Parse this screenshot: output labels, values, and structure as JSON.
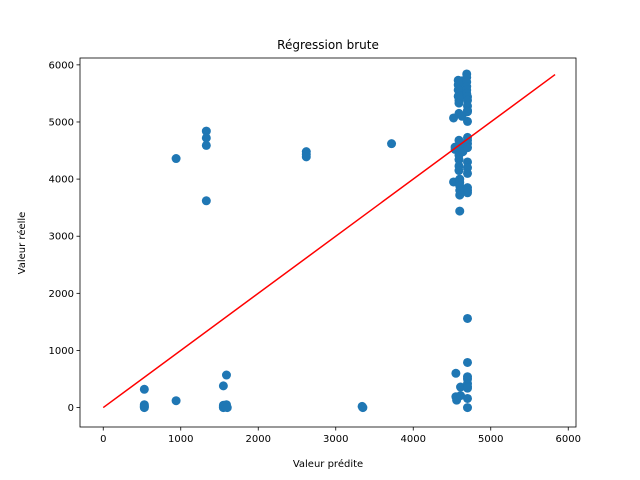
{
  "chart_data": {
    "type": "scatter",
    "title": "Régression brute",
    "xlabel": "Valeur prédite",
    "ylabel": "Valeur réelle",
    "xlim": [
      -300,
      6100
    ],
    "ylim": [
      -340,
      6120
    ],
    "xticks": [
      0,
      1000,
      2000,
      3000,
      4000,
      5000,
      6000
    ],
    "yticks": [
      0,
      1000,
      2000,
      3000,
      4000,
      5000,
      6000
    ],
    "grid": false,
    "colors": {
      "points": "#1f77b4",
      "line": "#ff0000"
    },
    "reference_line": {
      "x": [
        0,
        5830
      ],
      "y": [
        0,
        5830
      ]
    },
    "series": [
      {
        "x": [
          530,
          530,
          530,
          530,
          530,
          940,
          940,
          1330,
          1330,
          1330,
          1330,
          1550,
          1550,
          1550,
          1550,
          1560,
          1570,
          1580,
          1590,
          1590,
          1600,
          2620,
          2620,
          2620,
          3340,
          3350,
          3720,
          4520,
          4520,
          4540,
          4540,
          4550,
          4550,
          4560,
          4560,
          4580,
          4580,
          4580,
          4580,
          4590,
          4590,
          4590,
          4590,
          4590,
          4590,
          4590,
          4590,
          4590,
          4600,
          4600,
          4600,
          4600,
          4600,
          4600,
          4610,
          4610,
          4620,
          4620,
          4620,
          4630,
          4640,
          4640,
          4690,
          4690,
          4690,
          4690,
          4690,
          4690,
          4700,
          4700,
          4700,
          4700,
          4700,
          4700,
          4700,
          4700,
          4700,
          4700,
          4700,
          4700,
          4700,
          4700,
          4700,
          4700,
          4700,
          4700,
          4700,
          4700,
          4700,
          4700,
          4700,
          4700,
          4700
        ],
        "y": [
          320,
          50,
          30,
          15,
          0,
          4360,
          120,
          4840,
          4720,
          4590,
          3620,
          380,
          40,
          20,
          0,
          30,
          40,
          10,
          570,
          50,
          0,
          4480,
          4430,
          4390,
          20,
          0,
          4620,
          5070,
          3950,
          4560,
          4520,
          600,
          190,
          130,
          170,
          5730,
          5650,
          5560,
          5450,
          5380,
          5330,
          5150,
          4680,
          4560,
          4420,
          4340,
          4230,
          4150,
          4000,
          3940,
          3880,
          3800,
          3720,
          3440,
          360,
          210,
          5720,
          5550,
          5460,
          5100,
          4600,
          4480,
          5840,
          5780,
          5700,
          5620,
          5560,
          5500,
          5440,
          5380,
          5280,
          5200,
          5180,
          5010,
          4730,
          4680,
          4620,
          4550,
          4300,
          4200,
          4100,
          3850,
          3800,
          3760,
          1560,
          790,
          540,
          500,
          420,
          370,
          340,
          160,
          0
        ]
      }
    ]
  }
}
